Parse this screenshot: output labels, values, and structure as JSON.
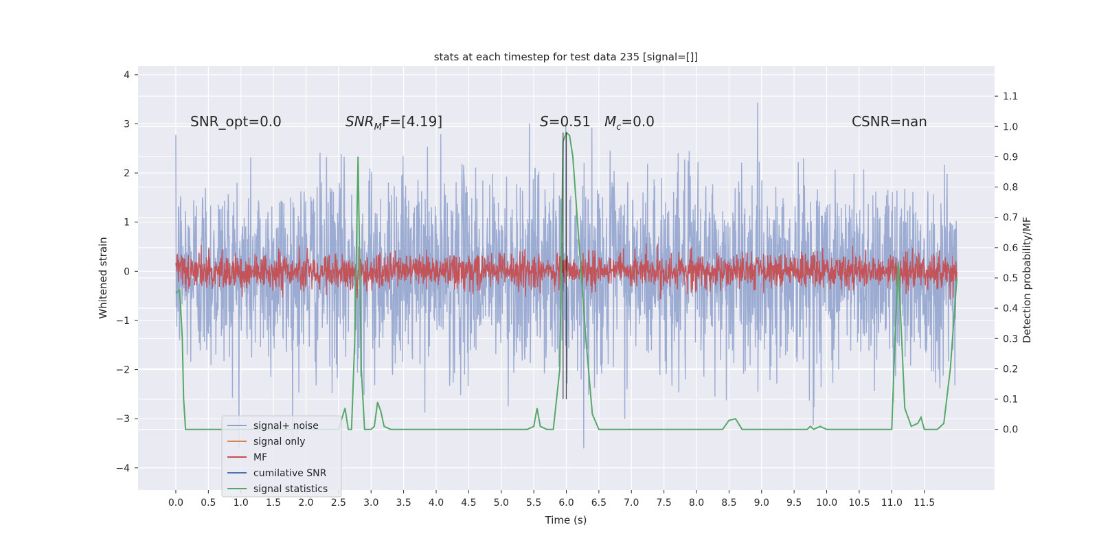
{
  "chart_data": {
    "type": "line",
    "title": "stats at each timestep for test data 235 [signal=[]]",
    "xlabel": "Time (s)",
    "ylabel": "Whitened strain",
    "y2label": "Detection probability/MF",
    "xlim": [
      -0.58,
      12.58
    ],
    "ylim": [
      -4.45,
      4.18
    ],
    "y2lim": [
      -0.2,
      1.2
    ],
    "xticks": [
      "0.0",
      "0.5",
      "1.0",
      "1.5",
      "2.0",
      "2.5",
      "3.0",
      "3.5",
      "4.0",
      "4.5",
      "5.0",
      "5.5",
      "6.0",
      "6.5",
      "7.0",
      "7.5",
      "8.0",
      "8.5",
      "9.0",
      "9.5",
      "10.0",
      "10.5",
      "11.0",
      "11.5"
    ],
    "yticks": [
      "−4",
      "−3",
      "−2",
      "−1",
      "0",
      "1",
      "2",
      "3",
      "4"
    ],
    "y2ticks": [
      "0.0",
      "0.1",
      "0.2",
      "0.3",
      "0.4",
      "0.5",
      "0.6",
      "0.7",
      "0.8",
      "0.9",
      "1.0",
      "1.1"
    ],
    "grid": true,
    "legend_position": "lower-left",
    "annotations": {
      "snr_opt": "SNR_opt=0.0",
      "snr_mf_pre": "SNR",
      "snr_mf_sub": "M",
      "snr_mf_post": "F=[4.19]",
      "s_var": "S",
      "s_val": "=0.51",
      "mc_var": "M",
      "mc_sub": "c",
      "mc_val": "=0.0",
      "csnr": "CSNR=nan"
    },
    "vertical_lines_x": [
      5.95,
      6.0
    ],
    "series": [
      {
        "name": "signal+ noise",
        "color": "#8da0cb",
        "kind": "noise",
        "amplitude": 1.0,
        "range": [
          0.0,
          12.0
        ]
      },
      {
        "name": "signal only",
        "color": "#dd8452",
        "kind": "line",
        "x": [],
        "y": []
      },
      {
        "name": "MF",
        "color": "#c44e52",
        "kind": "noise",
        "amplitude": 0.18,
        "range": [
          0.0,
          12.0
        ]
      },
      {
        "name": "cumilative SNR",
        "color": "#4c72b0",
        "kind": "line",
        "x": [],
        "y": []
      },
      {
        "name": "signal statistics",
        "color": "#55a868",
        "kind": "line",
        "axis": "right",
        "x": [
          0.0,
          0.06,
          0.1,
          0.12,
          0.15,
          0.18,
          0.4,
          0.6,
          1.0,
          1.5,
          2.0,
          2.3,
          2.5,
          2.6,
          2.65,
          2.7,
          2.75,
          2.8,
          2.85,
          2.9,
          2.95,
          3.0,
          3.05,
          3.1,
          3.15,
          3.2,
          3.3,
          3.5,
          4.0,
          4.5,
          5.0,
          5.4,
          5.5,
          5.55,
          5.6,
          5.7,
          5.8,
          5.9,
          5.95,
          6.0,
          6.05,
          6.1,
          6.2,
          6.3,
          6.4,
          6.5,
          6.6,
          7.0,
          8.0,
          8.4,
          8.5,
          8.6,
          8.7,
          9.0,
          9.5,
          9.7,
          9.75,
          9.8,
          9.9,
          10.0,
          10.5,
          10.9,
          11.0,
          11.05,
          11.1,
          11.2,
          11.3,
          11.4,
          11.45,
          11.5,
          11.6,
          11.7,
          11.8,
          11.9,
          12.0
        ],
        "y": [
          0.45,
          0.46,
          0.3,
          0.1,
          0.0,
          0.0,
          0.0,
          0.0,
          0.0,
          0.0,
          0.0,
          0.0,
          0.0,
          0.07,
          0.0,
          0.0,
          0.3,
          0.9,
          0.2,
          0.0,
          0.0,
          0.0,
          0.01,
          0.09,
          0.06,
          0.01,
          0.0,
          0.0,
          0.0,
          0.0,
          0.0,
          0.0,
          0.01,
          0.07,
          0.01,
          0.0,
          0.0,
          0.2,
          0.95,
          0.98,
          0.97,
          0.9,
          0.6,
          0.3,
          0.05,
          0.0,
          0.0,
          0.0,
          0.0,
          0.0,
          0.03,
          0.035,
          0.0,
          0.0,
          0.0,
          0.0,
          0.01,
          0.0,
          0.01,
          0.0,
          0.0,
          0.0,
          0.0,
          0.3,
          0.55,
          0.07,
          0.01,
          0.02,
          0.04,
          0.0,
          0.0,
          0.0,
          0.02,
          0.2,
          0.5
        ]
      }
    ]
  }
}
